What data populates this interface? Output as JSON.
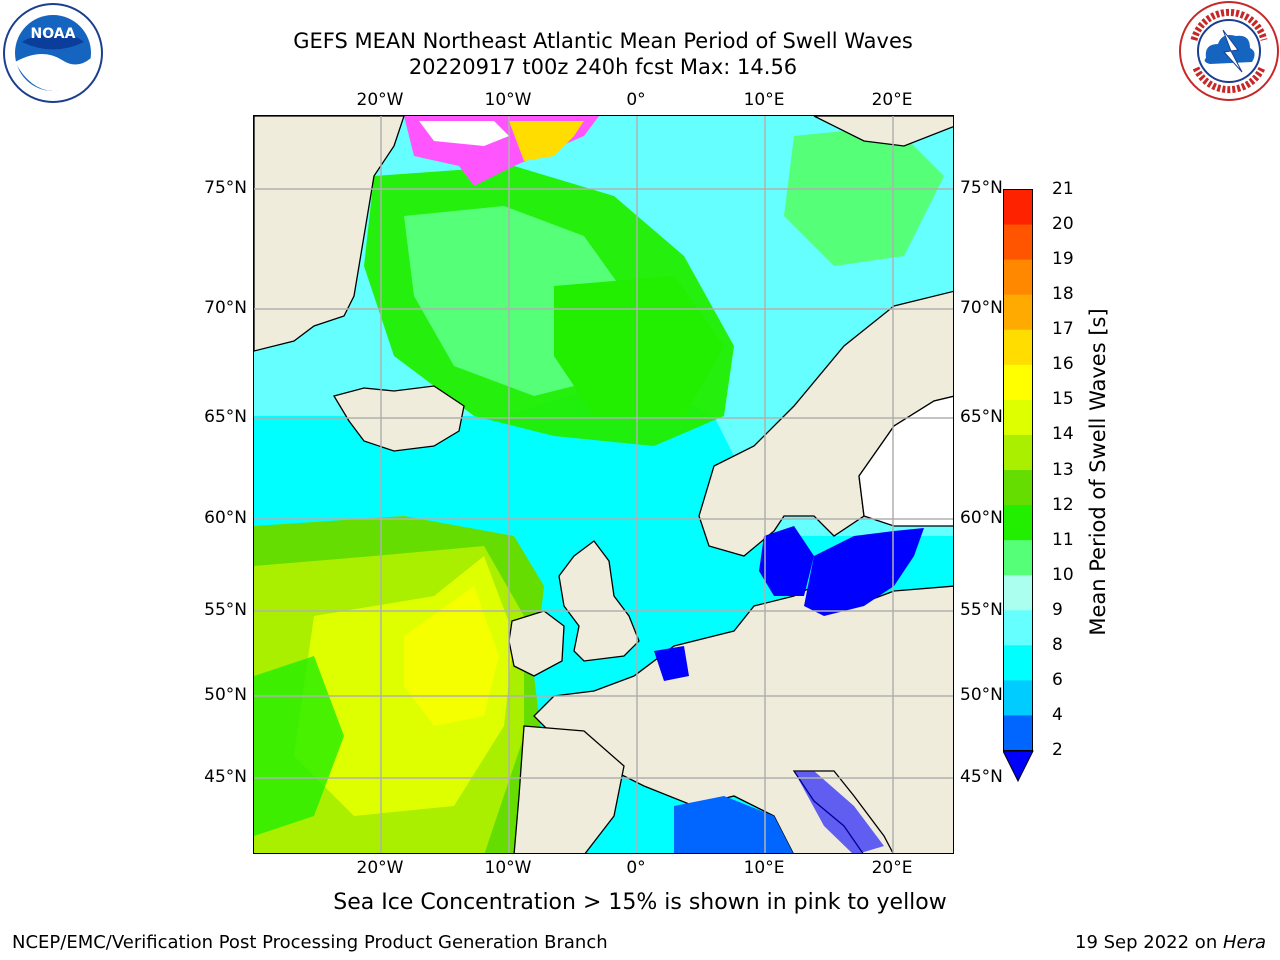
{
  "title_line1": "GEFS MEAN Northeast Atlantic Mean Period of Swell Waves",
  "title_line2": "20220917 t00z 240h fcst   Max: 14.56",
  "caption": "Sea Ice Concentration > 15% is shown in pink to yellow",
  "footer_left": "NCEP/EMC/Verification Post Processing Product Generation Branch",
  "footer_right_date": "19 Sep 2022 on ",
  "footer_right_host": "Hera",
  "logos": {
    "noaa_text": "NOAA",
    "noaa_icon": "noaa-logo-icon",
    "nws_icon": "nws-logo-icon"
  },
  "map": {
    "lon_ticks": [
      "20°W",
      "10°W",
      "0°",
      "10°E",
      "20°E"
    ],
    "lat_ticks": [
      "75°N",
      "70°N",
      "65°N",
      "60°N",
      "55°N",
      "50°N",
      "45°N"
    ],
    "colors": {
      "land": "#efecdc",
      "grid": "#b0b0b0",
      "coast": "#000000"
    }
  },
  "colorbar": {
    "title": "Mean Period of Swell Waves [s]",
    "labels": [
      "2",
      "4",
      "6",
      "8",
      "9",
      "10",
      "11",
      "12",
      "13",
      "14",
      "15",
      "16",
      "17",
      "18",
      "19",
      "20",
      "21"
    ],
    "colors": [
      "#0066ff",
      "#00ccff",
      "#00ffff",
      "#66ffff",
      "#aaffee",
      "#55ff77",
      "#22ee00",
      "#66dd00",
      "#aaee00",
      "#ddff00",
      "#ffff00",
      "#ffdd00",
      "#ffaa00",
      "#ff8800",
      "#ff5500",
      "#ff2200"
    ],
    "under_color": "#0000ff",
    "extend": "min"
  }
}
